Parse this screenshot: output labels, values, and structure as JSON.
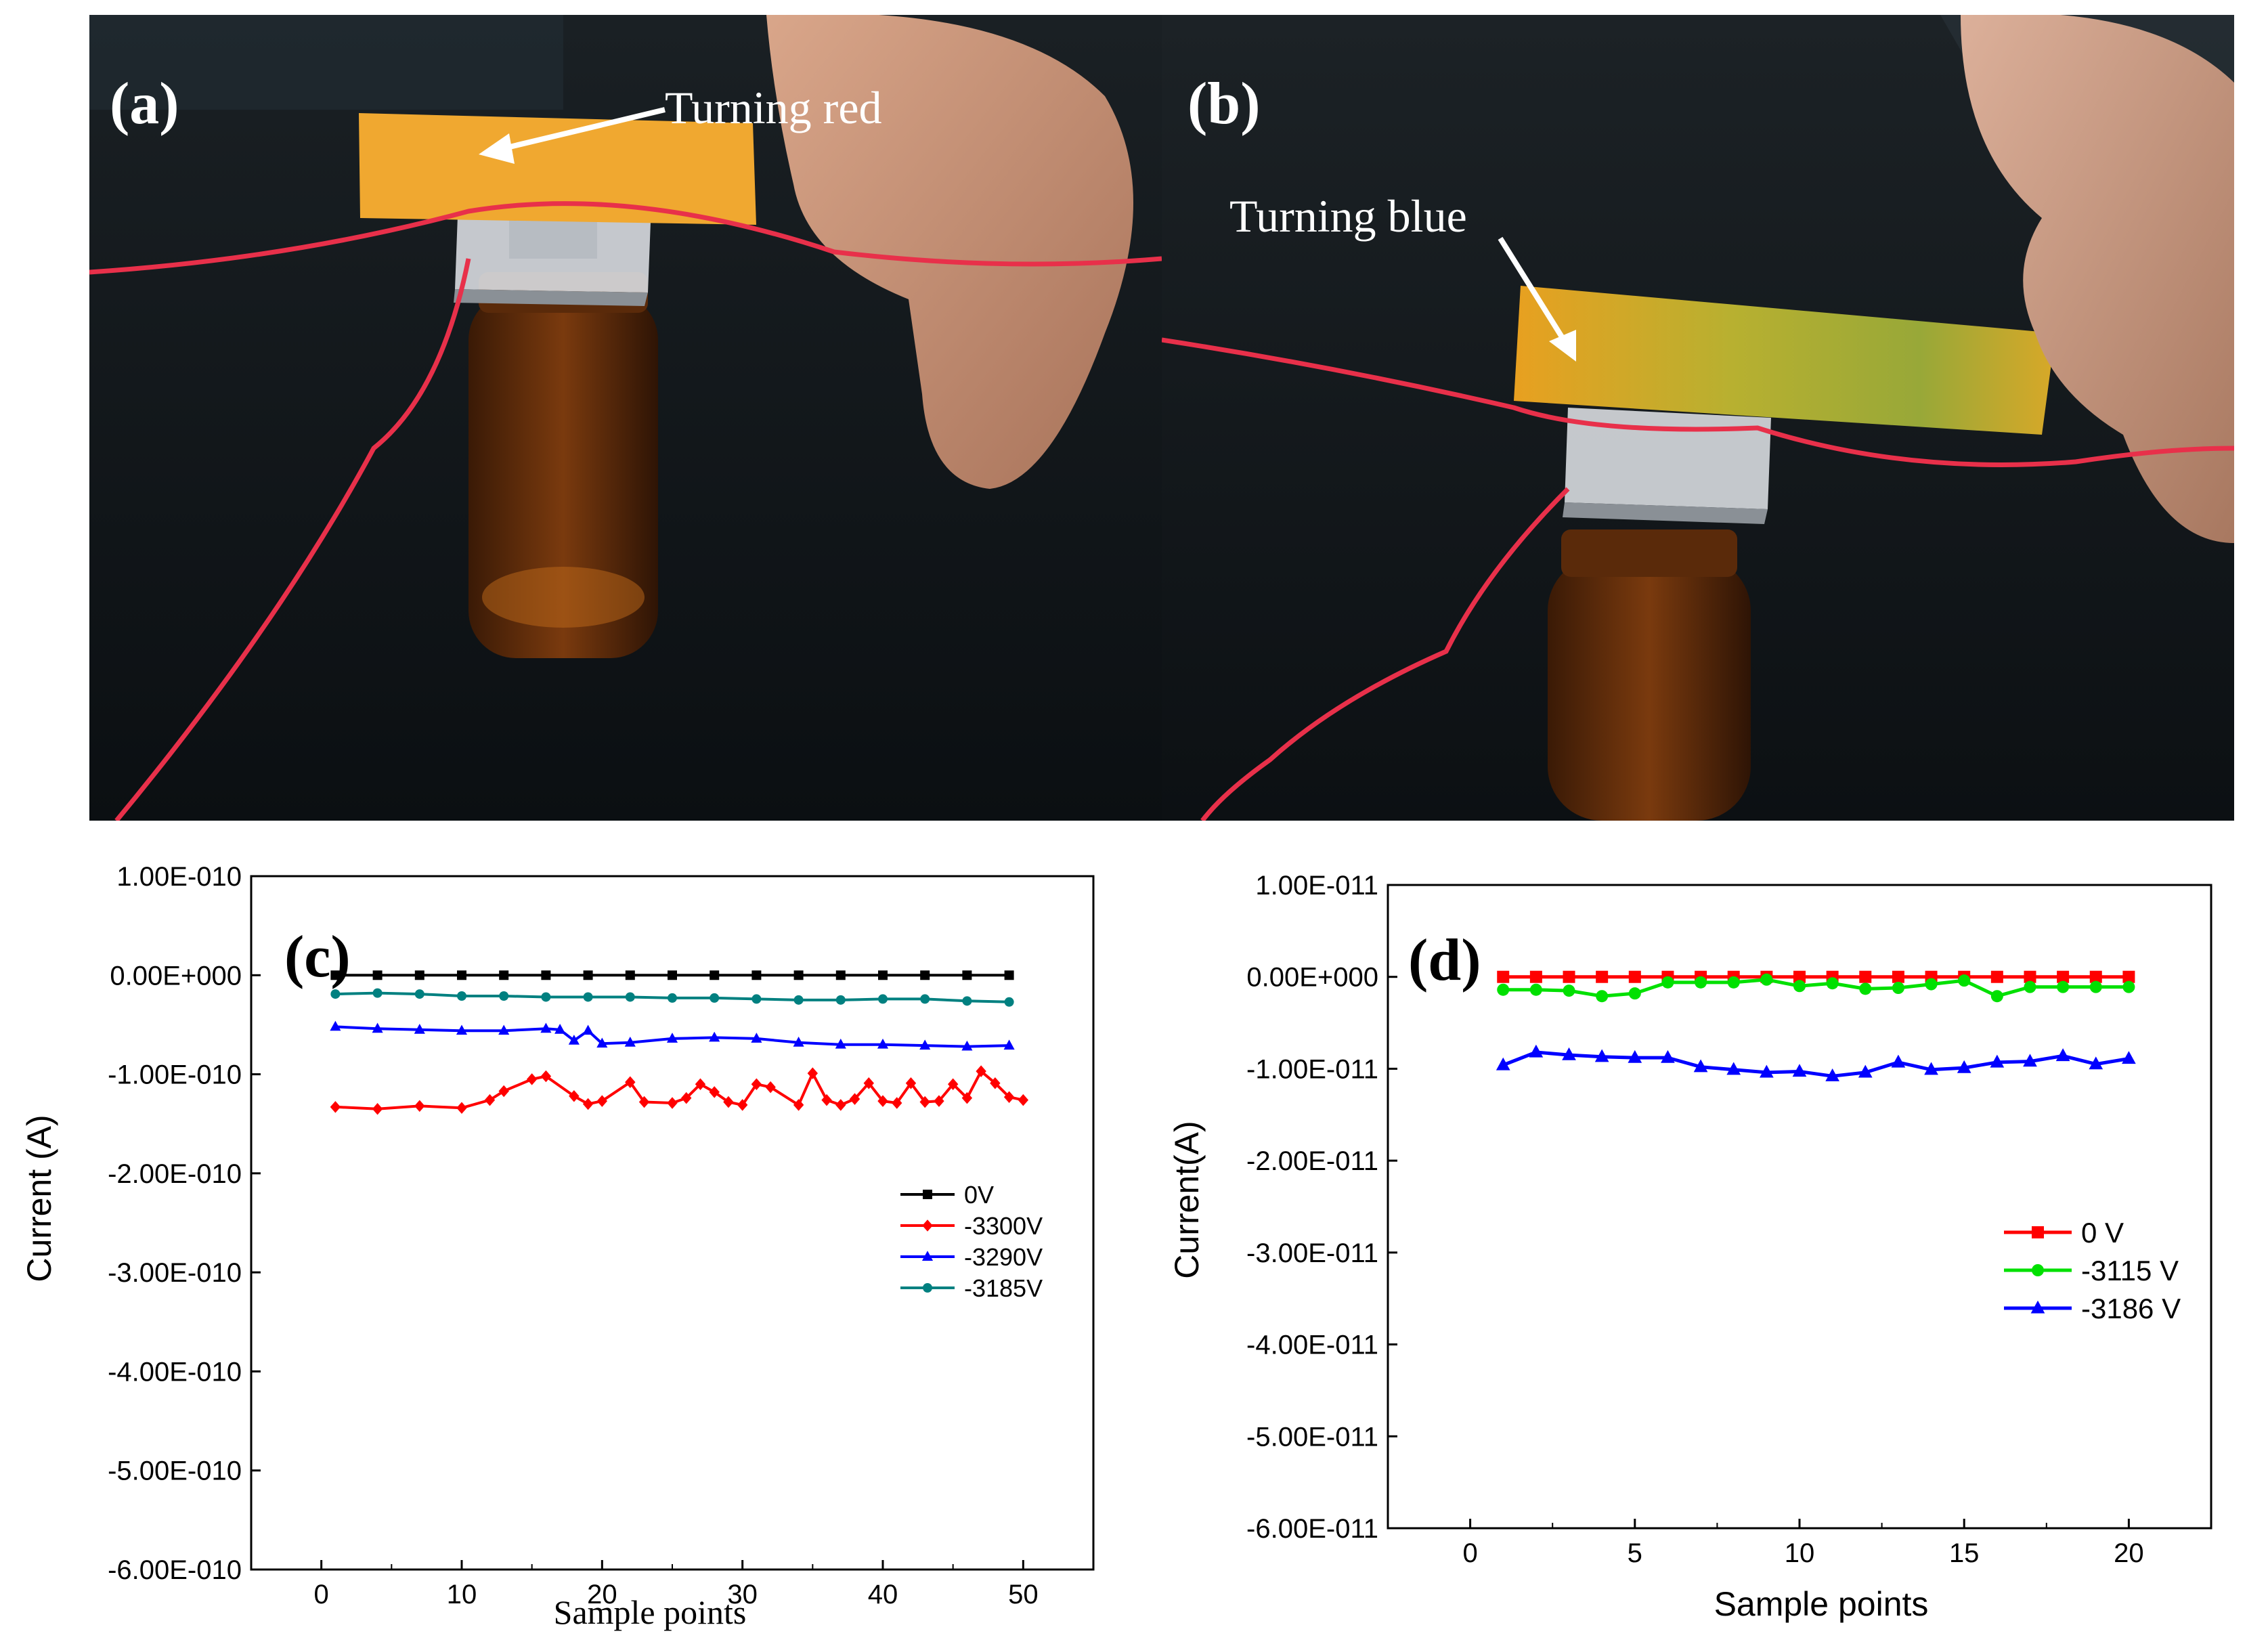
{
  "photos": {
    "a": {
      "panel_label": "(a)",
      "annotation": "Turning red"
    },
    "b": {
      "panel_label": "(b)",
      "annotation": "Turning blue"
    }
  },
  "chart_data": [
    {
      "type": "line",
      "panel_label": "(c)",
      "xlabel": "Sample points",
      "ylabel": "Current (A)",
      "xlim": [
        -5,
        55
      ],
      "ylim": [
        -6e-10,
        1e-10
      ],
      "x_ticks": [
        0,
        10,
        20,
        30,
        40,
        50
      ],
      "y_ticks": [
        1e-10,
        0,
        -1e-10,
        -2e-10,
        -3e-10,
        -4e-10,
        -5e-10,
        -6e-10
      ],
      "y_tick_labels": [
        "1.00E-010",
        "0.00E+000",
        "-1.00E-010",
        "-2.00E-010",
        "-3.00E-010",
        "-4.00E-010",
        "-5.00E-010",
        "-6.00E-010"
      ],
      "grid": false,
      "legend_position": "center-right",
      "series": [
        {
          "name": "0V",
          "color": "#000000",
          "marker": "square",
          "x": [
            1,
            4,
            7,
            10,
            13,
            16,
            19,
            22,
            25,
            28,
            31,
            34,
            37,
            40,
            43,
            46,
            49
          ],
          "y": [
            0,
            0,
            0,
            0,
            0,
            0,
            0,
            0,
            0,
            0,
            0,
            0,
            0,
            0,
            0,
            0,
            0
          ]
        },
        {
          "name": "-3300V",
          "color": "#ff0000",
          "marker": "diamond",
          "x": [
            1,
            4,
            7,
            10,
            12,
            13,
            15,
            16,
            18,
            19,
            20,
            22,
            23,
            25,
            26,
            27,
            28,
            29,
            30,
            31,
            32,
            34,
            35,
            36,
            37,
            38,
            39,
            40,
            41,
            42,
            43,
            44,
            45,
            46,
            47,
            48,
            49,
            50
          ],
          "y": [
            -1.33e-10,
            -1.35e-10,
            -1.32e-10,
            -1.34e-10,
            -1.26e-10,
            -1.17e-10,
            -1.05e-10,
            -1.02e-10,
            -1.22e-10,
            -1.3e-10,
            -1.27e-10,
            -1.08e-10,
            -1.28e-10,
            -1.29e-10,
            -1.24e-10,
            -1.1e-10,
            -1.18e-10,
            -1.28e-10,
            -1.31e-10,
            -1.1e-10,
            -1.13e-10,
            -1.31e-10,
            -9.9e-11,
            -1.26e-10,
            -1.31e-10,
            -1.25e-10,
            -1.09e-10,
            -1.27e-10,
            -1.29e-10,
            -1.09e-10,
            -1.28e-10,
            -1.27e-10,
            -1.1e-10,
            -1.24e-10,
            -9.7e-11,
            -1.09e-10,
            -1.23e-10,
            -1.26e-10
          ]
        },
        {
          "name": "-3290V",
          "color": "#0000ff",
          "marker": "triangle",
          "x": [
            1,
            4,
            7,
            10,
            13,
            16,
            17,
            18,
            19,
            20,
            22,
            25,
            28,
            31,
            34,
            37,
            40,
            43,
            46,
            49
          ],
          "y": [
            -5.2e-11,
            -5.4e-11,
            -5.5e-11,
            -5.6e-11,
            -5.6e-11,
            -5.4e-11,
            -5.5e-11,
            -6.6e-11,
            -5.6e-11,
            -6.9e-11,
            -6.8e-11,
            -6.4e-11,
            -6.3e-11,
            -6.4e-11,
            -6.8e-11,
            -7e-11,
            -7e-11,
            -7.1e-11,
            -7.2e-11,
            -7.1e-11
          ]
        },
        {
          "name": "-3185V",
          "color": "#008080",
          "marker": "circle",
          "x": [
            1,
            4,
            7,
            10,
            13,
            16,
            19,
            22,
            25,
            28,
            31,
            34,
            37,
            40,
            43,
            46,
            49
          ],
          "y": [
            -1.9e-11,
            -1.8e-11,
            -1.9e-11,
            -2.1e-11,
            -2.1e-11,
            -2.2e-11,
            -2.2e-11,
            -2.2e-11,
            -2.3e-11,
            -2.3e-11,
            -2.4e-11,
            -2.5e-11,
            -2.5e-11,
            -2.4e-11,
            -2.4e-11,
            -2.6e-11,
            -2.7e-11
          ]
        }
      ]
    },
    {
      "type": "line",
      "panel_label": "(d)",
      "xlabel": "Sample points",
      "ylabel": "Current(A)",
      "xlim": [
        -2.5,
        22.5
      ],
      "ylim": [
        -6e-11,
        1e-11
      ],
      "x_ticks": [
        0,
        5,
        10,
        15,
        20
      ],
      "y_ticks": [
        1e-11,
        0,
        -1e-11,
        -2e-11,
        -3e-11,
        -4e-11,
        -5e-11,
        -6e-11
      ],
      "y_tick_labels": [
        "1.00E-011",
        "0.00E+000",
        "-1.00E-011",
        "-2.00E-011",
        "-3.00E-011",
        "-4.00E-011",
        "-5.00E-011",
        "-6.00E-011"
      ],
      "grid": false,
      "legend_position": "center-right",
      "series": [
        {
          "name": "0 V",
          "color": "#ff0000",
          "marker": "square",
          "x": [
            1,
            2,
            3,
            4,
            5,
            6,
            7,
            8,
            9,
            10,
            11,
            12,
            13,
            14,
            15,
            16,
            17,
            18,
            19,
            20
          ],
          "y": [
            0,
            0,
            0,
            0,
            0,
            0,
            0,
            0,
            0,
            0,
            0,
            0,
            0,
            0,
            0,
            0,
            0,
            0,
            0,
            0
          ]
        },
        {
          "name": "-3115 V",
          "color": "#00e000",
          "marker": "circle",
          "x": [
            1,
            2,
            3,
            4,
            5,
            6,
            7,
            8,
            9,
            10,
            11,
            12,
            13,
            14,
            15,
            16,
            17,
            18,
            19,
            20
          ],
          "y": [
            -1.4e-12,
            -1.4e-12,
            -1.5e-12,
            -2.1e-12,
            -1.8e-12,
            -6e-13,
            -6e-13,
            -6e-13,
            -3e-13,
            -1e-12,
            -7e-13,
            -1.3e-12,
            -1.2e-12,
            -8e-13,
            -4e-13,
            -2.1e-12,
            -1.1e-12,
            -1.1e-12,
            -1.1e-12,
            -1.1e-12
          ]
        },
        {
          "name": "-3186 V",
          "color": "#0000ff",
          "marker": "triangle",
          "x": [
            1,
            2,
            3,
            4,
            5,
            6,
            7,
            8,
            9,
            10,
            11,
            12,
            13,
            14,
            15,
            16,
            17,
            18,
            19,
            20
          ],
          "y": [
            -9.6e-12,
            -8.2e-12,
            -8.5e-12,
            -8.7e-12,
            -8.8e-12,
            -8.8e-12,
            -9.8e-12,
            -1.01e-11,
            -1.04e-11,
            -1.03e-11,
            -1.08e-11,
            -1.04e-11,
            -9.3e-12,
            -1.01e-11,
            -9.9e-12,
            -9.3e-12,
            -9.2e-12,
            -8.6e-12,
            -9.5e-12,
            -8.9e-12
          ]
        }
      ]
    }
  ]
}
